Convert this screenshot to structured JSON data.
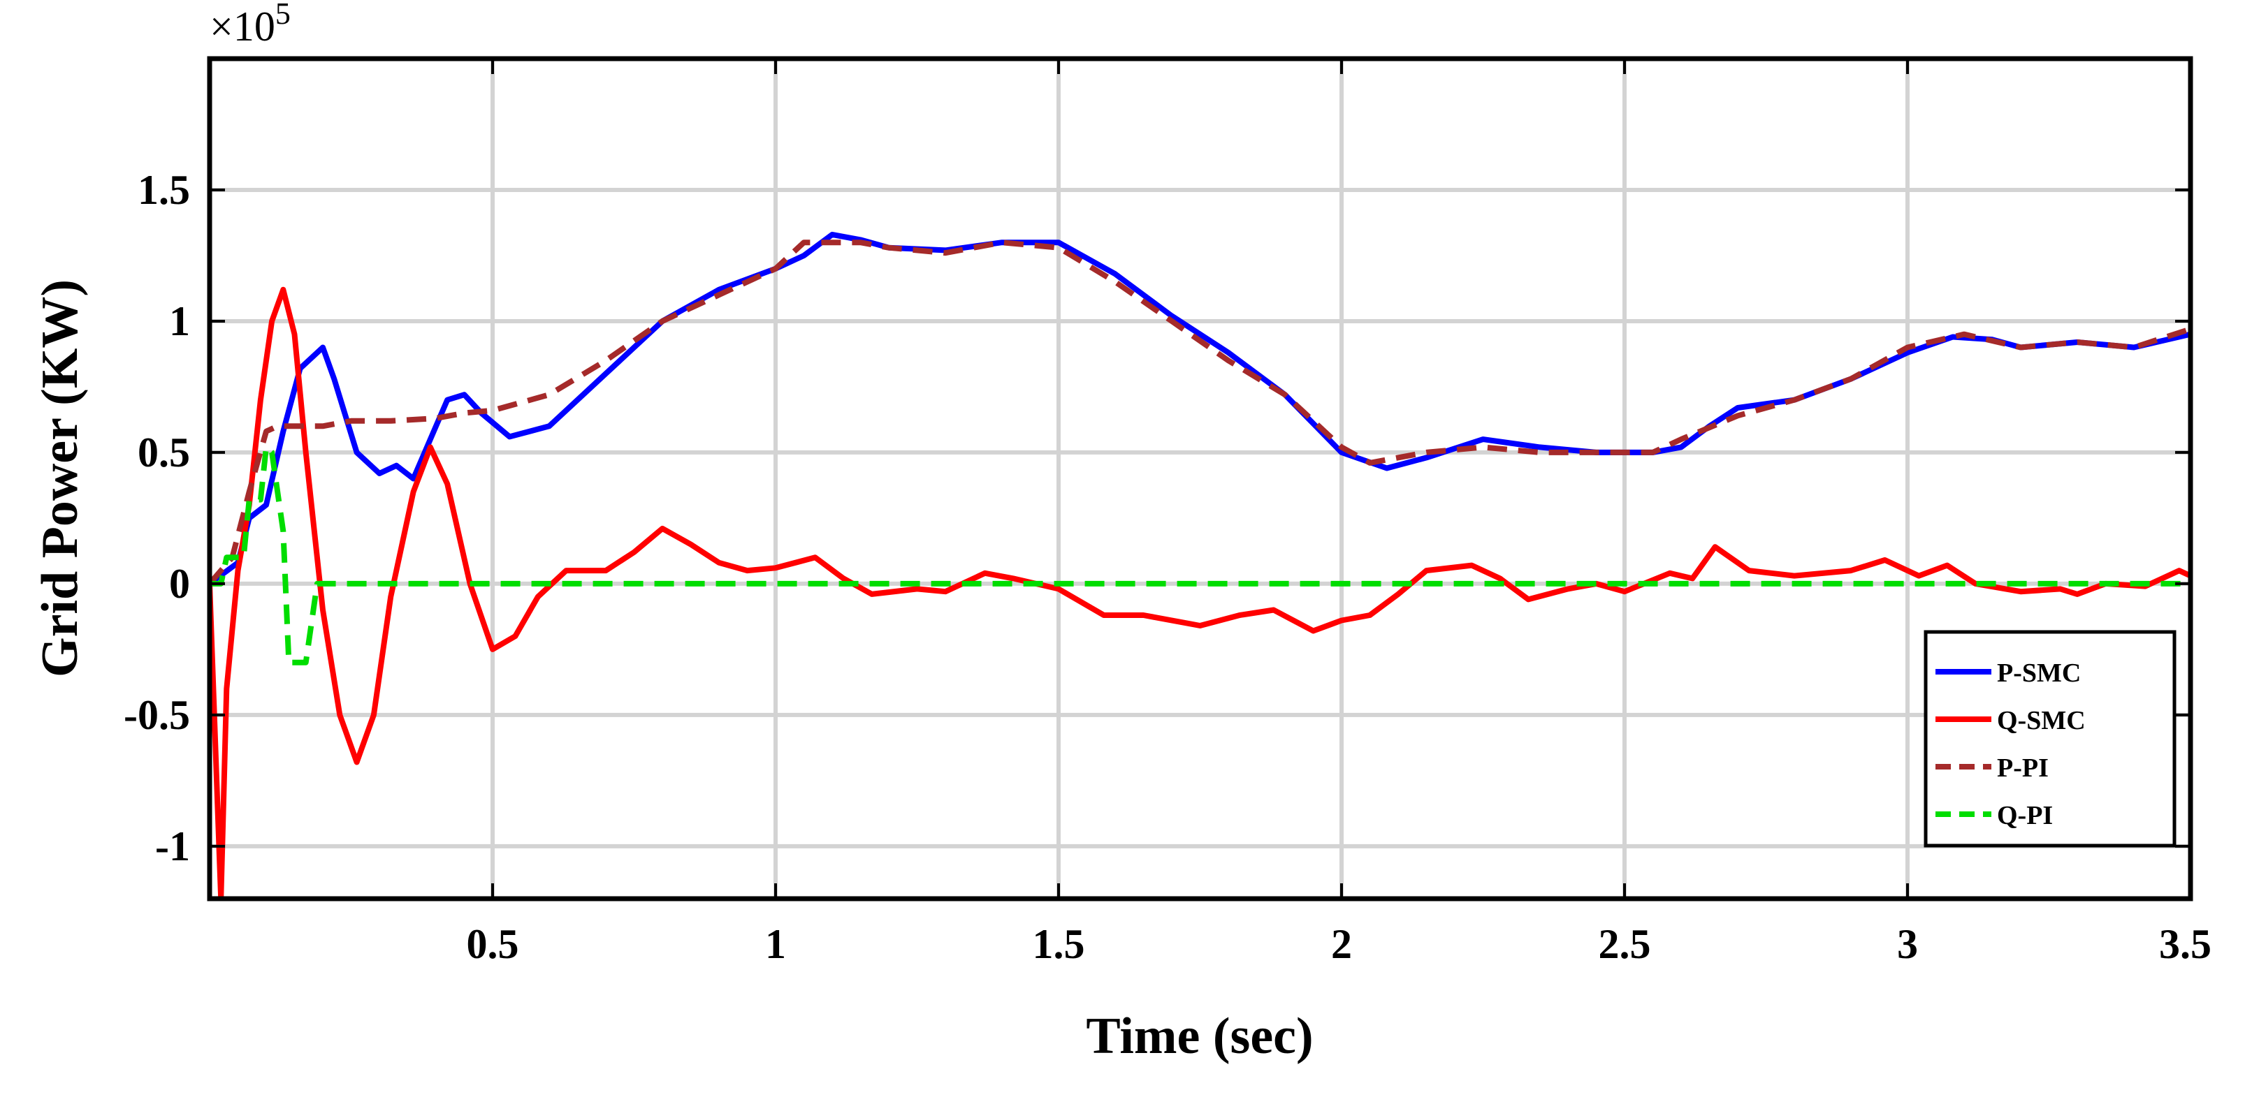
{
  "chart_data": {
    "type": "line",
    "xlabel": "Time (sec)",
    "ylabel": "Grid Power (KW)",
    "y_exponent_base": "×10",
    "y_exponent_power": "5",
    "xlim": [
      0,
      3.5
    ],
    "ylim": [
      -1.2,
      2.0
    ],
    "xticks": [
      0.5,
      1,
      1.5,
      2,
      2.5,
      3,
      3.5
    ],
    "xtick_labels": [
      "0.5",
      "1",
      "1.5",
      "2",
      "2.5",
      "3",
      "3.5"
    ],
    "yticks": [
      -1,
      -0.5,
      0,
      0.5,
      1,
      1.5
    ],
    "ytick_labels": [
      "-1",
      "-0.5",
      "0",
      "0.5",
      "1",
      "1.5"
    ],
    "grid": true,
    "legend_position": "bottom-right",
    "series": [
      {
        "name": "P-SMC",
        "color": "#0000ff",
        "dash": "solid",
        "points": [
          [
            0,
            0
          ],
          [
            0.05,
            0.08
          ],
          [
            0.07,
            0.25
          ],
          [
            0.1,
            0.3
          ],
          [
            0.13,
            0.58
          ],
          [
            0.16,
            0.82
          ],
          [
            0.2,
            0.9
          ],
          [
            0.22,
            0.78
          ],
          [
            0.26,
            0.5
          ],
          [
            0.3,
            0.42
          ],
          [
            0.33,
            0.45
          ],
          [
            0.36,
            0.4
          ],
          [
            0.39,
            0.55
          ],
          [
            0.42,
            0.7
          ],
          [
            0.45,
            0.72
          ],
          [
            0.48,
            0.65
          ],
          [
            0.53,
            0.56
          ],
          [
            0.6,
            0.6
          ],
          [
            0.7,
            0.8
          ],
          [
            0.8,
            1.0
          ],
          [
            0.9,
            1.12
          ],
          [
            1.0,
            1.2
          ],
          [
            1.05,
            1.25
          ],
          [
            1.1,
            1.33
          ],
          [
            1.15,
            1.31
          ],
          [
            1.2,
            1.28
          ],
          [
            1.3,
            1.27
          ],
          [
            1.4,
            1.3
          ],
          [
            1.5,
            1.3
          ],
          [
            1.6,
            1.18
          ],
          [
            1.7,
            1.02
          ],
          [
            1.8,
            0.88
          ],
          [
            1.9,
            0.72
          ],
          [
            2.0,
            0.5
          ],
          [
            2.08,
            0.44
          ],
          [
            2.15,
            0.48
          ],
          [
            2.25,
            0.55
          ],
          [
            2.35,
            0.52
          ],
          [
            2.45,
            0.5
          ],
          [
            2.55,
            0.5
          ],
          [
            2.6,
            0.52
          ],
          [
            2.65,
            0.6
          ],
          [
            2.7,
            0.67
          ],
          [
            2.8,
            0.7
          ],
          [
            2.9,
            0.78
          ],
          [
            3.0,
            0.88
          ],
          [
            3.08,
            0.94
          ],
          [
            3.15,
            0.93
          ],
          [
            3.2,
            0.9
          ],
          [
            3.3,
            0.92
          ],
          [
            3.4,
            0.9
          ],
          [
            3.5,
            0.95
          ]
        ]
      },
      {
        "name": "Q-SMC",
        "color": "#ff0000",
        "dash": "solid",
        "points": [
          [
            0,
            0
          ],
          [
            0.015,
            -0.9
          ],
          [
            0.02,
            -1.2
          ],
          [
            0.03,
            -0.4
          ],
          [
            0.05,
            0.05
          ],
          [
            0.07,
            0.3
          ],
          [
            0.09,
            0.7
          ],
          [
            0.11,
            1.0
          ],
          [
            0.13,
            1.12
          ],
          [
            0.15,
            0.95
          ],
          [
            0.17,
            0.5
          ],
          [
            0.2,
            -0.1
          ],
          [
            0.23,
            -0.5
          ],
          [
            0.26,
            -0.68
          ],
          [
            0.29,
            -0.5
          ],
          [
            0.32,
            -0.05
          ],
          [
            0.36,
            0.35
          ],
          [
            0.39,
            0.52
          ],
          [
            0.42,
            0.38
          ],
          [
            0.46,
            0.0
          ],
          [
            0.5,
            -0.25
          ],
          [
            0.54,
            -0.2
          ],
          [
            0.58,
            -0.05
          ],
          [
            0.63,
            0.05
          ],
          [
            0.7,
            0.05
          ],
          [
            0.75,
            0.12
          ],
          [
            0.8,
            0.21
          ],
          [
            0.85,
            0.15
          ],
          [
            0.9,
            0.08
          ],
          [
            0.95,
            0.05
          ],
          [
            1.0,
            0.06
          ],
          [
            1.07,
            0.1
          ],
          [
            1.12,
            0.02
          ],
          [
            1.17,
            -0.04
          ],
          [
            1.25,
            -0.02
          ],
          [
            1.3,
            -0.03
          ],
          [
            1.37,
            0.04
          ],
          [
            1.42,
            0.02
          ],
          [
            1.5,
            -0.02
          ],
          [
            1.58,
            -0.12
          ],
          [
            1.65,
            -0.12
          ],
          [
            1.75,
            -0.16
          ],
          [
            1.82,
            -0.12
          ],
          [
            1.88,
            -0.1
          ],
          [
            1.95,
            -0.18
          ],
          [
            2.0,
            -0.14
          ],
          [
            2.05,
            -0.12
          ],
          [
            2.1,
            -0.04
          ],
          [
            2.15,
            0.05
          ],
          [
            2.23,
            0.07
          ],
          [
            2.28,
            0.02
          ],
          [
            2.33,
            -0.06
          ],
          [
            2.4,
            -0.02
          ],
          [
            2.45,
            0.0
          ],
          [
            2.5,
            -0.03
          ],
          [
            2.58,
            0.04
          ],
          [
            2.62,
            0.02
          ],
          [
            2.66,
            0.14
          ],
          [
            2.72,
            0.05
          ],
          [
            2.8,
            0.03
          ],
          [
            2.9,
            0.05
          ],
          [
            2.96,
            0.09
          ],
          [
            3.02,
            0.03
          ],
          [
            3.07,
            0.07
          ],
          [
            3.12,
            0.0
          ],
          [
            3.2,
            -0.03
          ],
          [
            3.27,
            -0.02
          ],
          [
            3.3,
            -0.04
          ],
          [
            3.35,
            0.0
          ],
          [
            3.42,
            -0.01
          ],
          [
            3.48,
            0.05
          ],
          [
            3.5,
            0.03
          ]
        ]
      },
      {
        "name": "P-PI",
        "color": "#a52a2a",
        "dash": "dashed",
        "points": [
          [
            0,
            0
          ],
          [
            0.04,
            0.1
          ],
          [
            0.07,
            0.35
          ],
          [
            0.1,
            0.58
          ],
          [
            0.12,
            0.6
          ],
          [
            0.15,
            0.6
          ],
          [
            0.2,
            0.6
          ],
          [
            0.25,
            0.62
          ],
          [
            0.32,
            0.62
          ],
          [
            0.4,
            0.63
          ],
          [
            0.45,
            0.65
          ],
          [
            0.5,
            0.66
          ],
          [
            0.6,
            0.72
          ],
          [
            0.7,
            0.85
          ],
          [
            0.8,
            1.0
          ],
          [
            0.9,
            1.1
          ],
          [
            1.0,
            1.2
          ],
          [
            1.05,
            1.3
          ],
          [
            1.1,
            1.3
          ],
          [
            1.15,
            1.3
          ],
          [
            1.2,
            1.28
          ],
          [
            1.3,
            1.26
          ],
          [
            1.4,
            1.3
          ],
          [
            1.5,
            1.28
          ],
          [
            1.6,
            1.15
          ],
          [
            1.7,
            1.0
          ],
          [
            1.8,
            0.85
          ],
          [
            1.9,
            0.72
          ],
          [
            2.0,
            0.52
          ],
          [
            2.05,
            0.46
          ],
          [
            2.15,
            0.5
          ],
          [
            2.25,
            0.52
          ],
          [
            2.35,
            0.5
          ],
          [
            2.45,
            0.5
          ],
          [
            2.55,
            0.5
          ],
          [
            2.6,
            0.55
          ],
          [
            2.7,
            0.64
          ],
          [
            2.8,
            0.7
          ],
          [
            2.9,
            0.78
          ],
          [
            3.0,
            0.9
          ],
          [
            3.1,
            0.95
          ],
          [
            3.2,
            0.9
          ],
          [
            3.3,
            0.92
          ],
          [
            3.4,
            0.9
          ],
          [
            3.5,
            0.97
          ]
        ]
      },
      {
        "name": "Q-PI",
        "color": "#00dd00",
        "dash": "dashed",
        "points": [
          [
            0,
            0
          ],
          [
            0.02,
            0.0
          ],
          [
            0.03,
            0.1
          ],
          [
            0.06,
            0.1
          ],
          [
            0.07,
            0.32
          ],
          [
            0.09,
            0.32
          ],
          [
            0.1,
            0.52
          ],
          [
            0.11,
            0.5
          ],
          [
            0.13,
            0.2
          ],
          [
            0.14,
            -0.3
          ],
          [
            0.17,
            -0.3
          ],
          [
            0.19,
            0.0
          ],
          [
            0.22,
            0.0
          ],
          [
            3.5,
            0.0
          ]
        ]
      }
    ]
  }
}
